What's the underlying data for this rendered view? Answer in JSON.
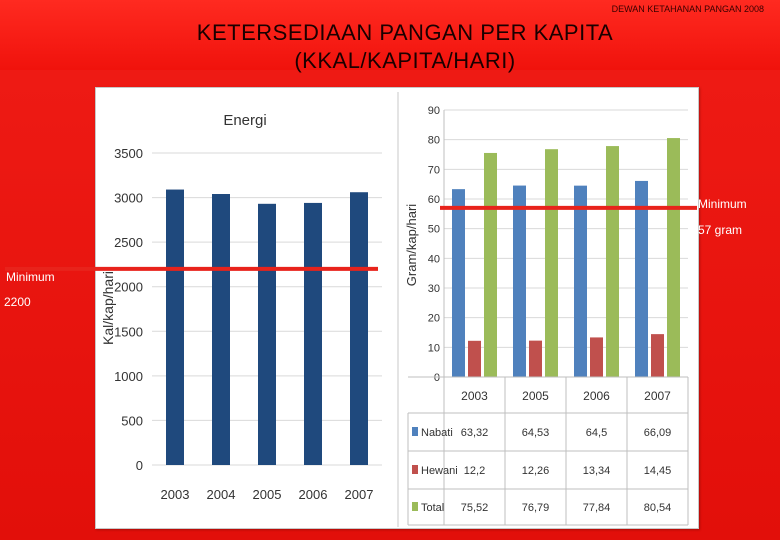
{
  "header_note": "DEWAN KETAHANAN PANGAN 2008",
  "title_line1": "KETERSEDIAAN PANGAN PER KAPITA",
  "title_line2": "(KKAL/KAPITA/HARI)",
  "annotations": {
    "energy_min_label": "Minimum",
    "energy_min_value": "2200",
    "protein_min_label": "Minimum",
    "protein_min_value": "57 gram"
  },
  "colors": {
    "background": "#f2140f",
    "energy_bar": "#1f497d",
    "nabati": "#4f81bd",
    "hewani": "#c0504d",
    "total": "#9bbb59",
    "threshold_line": "#e8231b"
  },
  "chart_data": [
    {
      "type": "bar",
      "title": "Energi",
      "ylabel": "Kal/kap/hari",
      "xlabel": "",
      "categories": [
        "2003",
        "2004",
        "2005",
        "2006",
        "2007"
      ],
      "values": [
        3090,
        3040,
        2930,
        2940,
        3060
      ],
      "ylim": [
        0,
        3500
      ],
      "yticks": [
        "0",
        "500",
        "1000",
        "1500",
        "2000",
        "2500",
        "3000",
        "3500"
      ],
      "threshold": 2200,
      "grid": true
    },
    {
      "type": "bar",
      "title": "",
      "ylabel": "Gram/kap/hari",
      "xlabel": "",
      "categories": [
        "2003",
        "2005",
        "2006",
        "2007"
      ],
      "ylim": [
        0,
        90
      ],
      "yticks": [
        "0",
        "10",
        "20",
        "30",
        "40",
        "50",
        "60",
        "70",
        "80",
        "90"
      ],
      "threshold": 57,
      "grid": true,
      "series": [
        {
          "name": "Nabati",
          "values": [
            63.32,
            64.53,
            64.5,
            66.09
          ],
          "labels": [
            "63,32",
            "64,53",
            "64,5",
            "66,09"
          ]
        },
        {
          "name": "Hewani",
          "values": [
            12.2,
            12.26,
            13.34,
            14.45
          ],
          "labels": [
            "12,2",
            "12,26",
            "13,34",
            "14,45"
          ]
        },
        {
          "name": "Total",
          "values": [
            75.52,
            76.79,
            77.84,
            80.54
          ],
          "labels": [
            "75,52",
            "76,79",
            "77,84",
            "80,54"
          ]
        }
      ]
    }
  ]
}
